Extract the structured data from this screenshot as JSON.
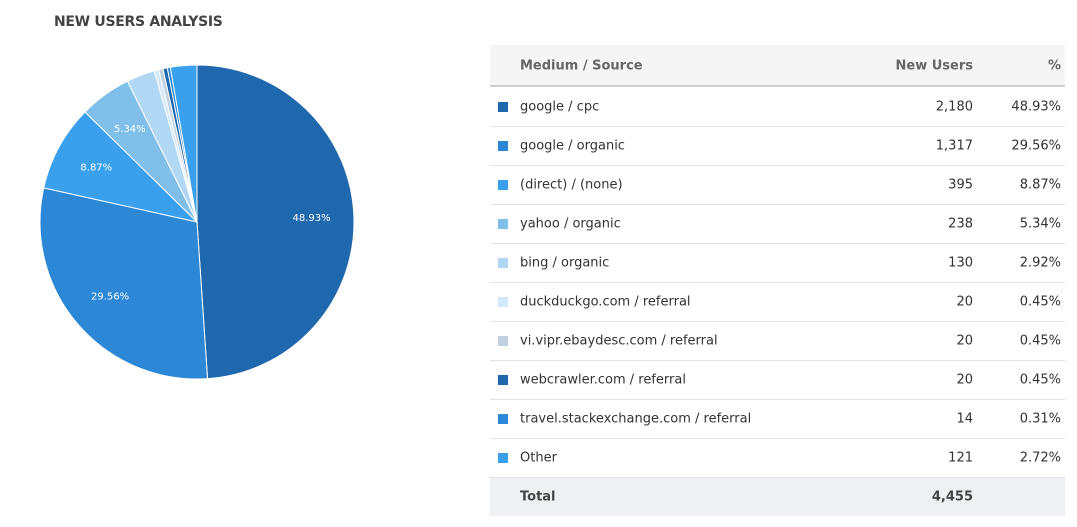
{
  "title": "NEW USERS ANALYSIS",
  "chart_data": {
    "type": "pie",
    "categories": [
      "google / cpc",
      "google / organic",
      "(direct) / (none)",
      "yahoo / organic",
      "bing / organic",
      "duckduckgo.com / referral",
      "vi.vipr.ebaydesc.com / referral",
      "webcrawler.com / referral",
      "travel.stackexchange.com / referral",
      "Other"
    ],
    "values": [
      48.93,
      29.56,
      8.87,
      5.34,
      2.92,
      0.45,
      0.45,
      0.45,
      0.31,
      2.72
    ],
    "value_labels": [
      "48.93%",
      "29.56%",
      "8.87%",
      "5.34%",
      null,
      null,
      null,
      null,
      null,
      null
    ],
    "colors": [
      "#1f68ad",
      "#2c88d6",
      "#3aa0ee",
      "#80bfea",
      "#b0d7f3",
      "#d2e8f8",
      "#c0d0e0",
      "#1f68ad",
      "#2c88d6",
      "#3aa0ee"
    ]
  },
  "table": {
    "header": [
      "Medium / Source",
      "New Users",
      "%"
    ],
    "rows": [
      [
        "2,180",
        "48.93%"
      ],
      [
        "1,317",
        "29.56%"
      ],
      [
        "395",
        "8.87%"
      ],
      [
        "238",
        "5.34%"
      ],
      [
        "130",
        "2.92%"
      ],
      [
        "20",
        "0.45%"
      ],
      [
        "20",
        "0.45%"
      ],
      [
        "20",
        "0.45%"
      ],
      [
        "14",
        "0.31%"
      ],
      [
        "121",
        "2.72%"
      ]
    ],
    "total": [
      "Total",
      "4,455"
    ]
  }
}
